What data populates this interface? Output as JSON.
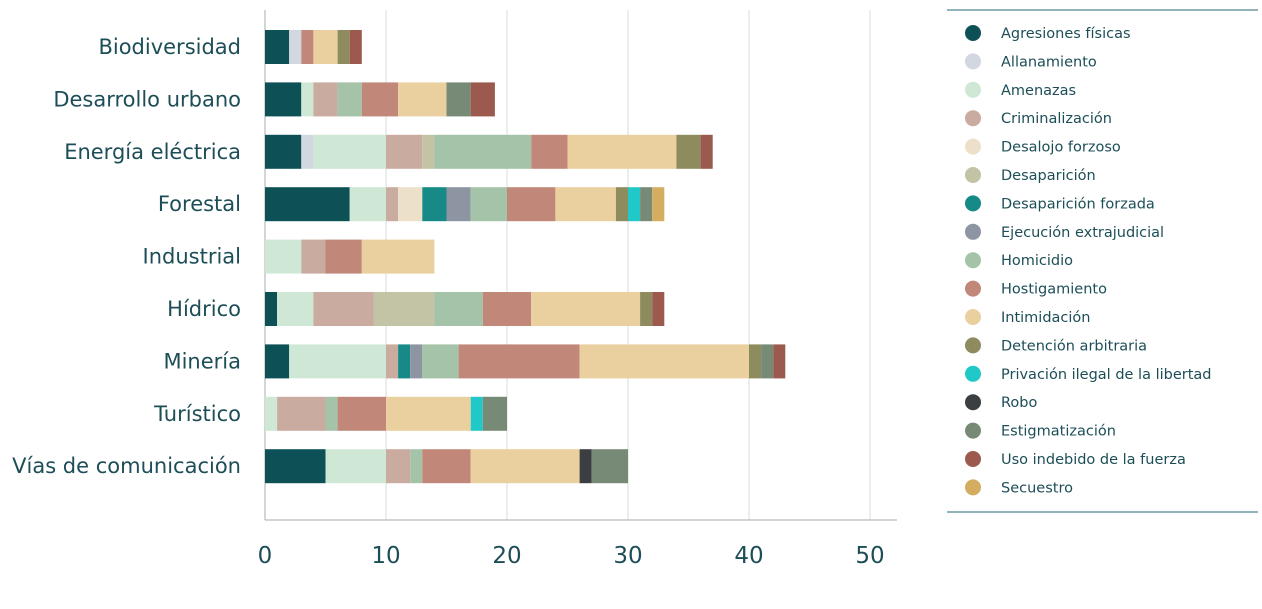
{
  "chart_data": {
    "type": "bar",
    "orientation": "horizontal",
    "stacked": true,
    "title": "",
    "xlabel": "",
    "ylabel": "",
    "xlim": [
      0,
      50
    ],
    "xticks": [
      0,
      10,
      20,
      30,
      40,
      50
    ],
    "grid": "vertical",
    "legend_position": "right",
    "categories": [
      "Biodiversidad",
      "Desarrollo urbano",
      "Energía eléctrica",
      "Forestal",
      "Industrial",
      "Hídrico",
      "Minería",
      "Turístico",
      "Vías de comunicación"
    ],
    "series": [
      {
        "name": "Agresiones físicas",
        "color": "#0d5156",
        "values": [
          2,
          3,
          3,
          7,
          0,
          1,
          2,
          0,
          5
        ]
      },
      {
        "name": "Allanamiento",
        "color": "#d3d7e0",
        "values": [
          1,
          0,
          1,
          0,
          0,
          0,
          0,
          0,
          0
        ]
      },
      {
        "name": "Amenazas",
        "color": "#cfe8d6",
        "values": [
          0,
          1,
          6,
          3,
          3,
          3,
          8,
          1,
          5
        ]
      },
      {
        "name": "Criminalización",
        "color": "#c9ab9f",
        "values": [
          0,
          2,
          3,
          1,
          2,
          5,
          1,
          4,
          2
        ]
      },
      {
        "name": "Desalojo forzoso",
        "color": "#ede0ca",
        "values": [
          0,
          0,
          0,
          2,
          0,
          0,
          0,
          0,
          0
        ]
      },
      {
        "name": "Desaparición",
        "color": "#c3c3a5",
        "values": [
          0,
          0,
          1,
          0,
          0,
          5,
          0,
          0,
          0
        ]
      },
      {
        "name": "Desaparición forzada",
        "color": "#178a87",
        "values": [
          0,
          0,
          0,
          2,
          0,
          0,
          1,
          0,
          0
        ]
      },
      {
        "name": "Ejecución extrajudicial",
        "color": "#8e95a2",
        "values": [
          0,
          0,
          0,
          2,
          0,
          0,
          1,
          0,
          0
        ]
      },
      {
        "name": "Homicidio",
        "color": "#a4c3a8",
        "values": [
          0,
          2,
          8,
          3,
          0,
          4,
          3,
          1,
          1
        ]
      },
      {
        "name": "Hostigamiento",
        "color": "#c1887a",
        "values": [
          1,
          3,
          3,
          4,
          3,
          4,
          10,
          4,
          4
        ]
      },
      {
        "name": "Intimidación",
        "color": "#ebd09f",
        "values": [
          2,
          4,
          9,
          5,
          6,
          9,
          14,
          7,
          9
        ]
      },
      {
        "name": "Detención arbitraria",
        "color": "#8e8c5f",
        "values": [
          1,
          0,
          2,
          1,
          0,
          1,
          1,
          0,
          0
        ]
      },
      {
        "name": "Privación ilegal de la libertad",
        "color": "#21c8c8",
        "values": [
          0,
          0,
          0,
          1,
          0,
          0,
          0,
          1,
          0
        ]
      },
      {
        "name": "Robo",
        "color": "#3b3f42",
        "values": [
          0,
          0,
          0,
          0,
          0,
          0,
          0,
          0,
          1
        ]
      },
      {
        "name": "Estigmatización",
        "color": "#778a76",
        "values": [
          0,
          2,
          0,
          1,
          0,
          0,
          1,
          2,
          3
        ]
      },
      {
        "name": "Uso indebido de la fuerza",
        "color": "#9c5a4e",
        "values": [
          1,
          2,
          1,
          0,
          0,
          1,
          1,
          0,
          0
        ]
      },
      {
        "name": "Secuestro",
        "color": "#d5ad60",
        "values": [
          0,
          0,
          0,
          1,
          0,
          0,
          0,
          0,
          0
        ]
      }
    ]
  }
}
